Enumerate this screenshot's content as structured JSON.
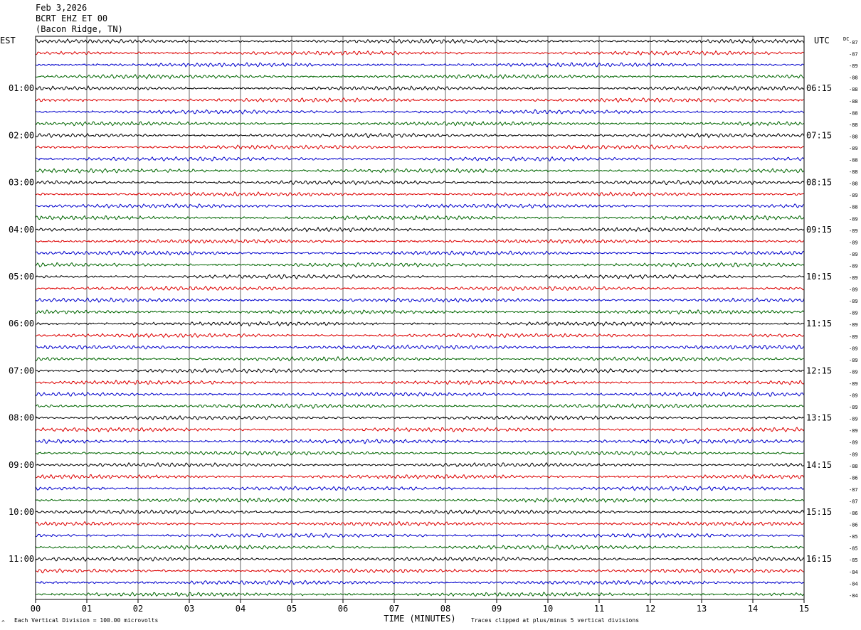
{
  "header": {
    "date": "Feb 3,2026",
    "station": "BCRT EHZ ET 00",
    "location": "(Bacon Ridge, TN)"
  },
  "labels": {
    "left_tz": "EST",
    "right_tz": "UTC",
    "dc": "DC",
    "xlabel": "TIME (MINUTES)",
    "scale_note": "Each Vertical Division =  100.00 microvolts",
    "clip_note": "Traces clipped at plus/minus 5 vertical divisions",
    "corner_mark": "^"
  },
  "chart_data": {
    "type": "line",
    "x_range": [
      0,
      15
    ],
    "x_ticks": [
      "00",
      "01",
      "02",
      "03",
      "04",
      "05",
      "06",
      "07",
      "08",
      "09",
      "10",
      "11",
      "12",
      "13",
      "14",
      "15"
    ],
    "trace_count": 48,
    "trace_colors": [
      "#000000",
      "#dd0000",
      "#0000cc",
      "#006600"
    ],
    "left_hour_labels": [
      "01:00",
      "02:00",
      "03:00",
      "04:00",
      "05:00",
      "06:00",
      "07:00",
      "08:00",
      "09:00",
      "10:00",
      "11:00"
    ],
    "right_hour_labels": [
      "06:15",
      "07:15",
      "08:15",
      "09:15",
      "10:15",
      "11:15",
      "12:15",
      "13:15",
      "14:15",
      "15:15",
      "16:15"
    ],
    "dc_offsets": [
      "-87",
      "-87",
      "-89",
      "-88",
      "-88",
      "-88",
      "-88",
      "-88",
      "-88",
      "-89",
      "-88",
      "-88",
      "-88",
      "-89",
      "-88",
      "-89",
      "-89",
      "-89",
      "-89",
      "-89",
      "-89",
      "-89",
      "-89",
      "-89",
      "-89",
      "-89",
      "-89",
      "-89",
      "-89",
      "-89",
      "-89",
      "-89",
      "-89",
      "-89",
      "-89",
      "-89",
      "-88",
      "-86",
      "-87",
      "-87",
      "-86",
      "-86",
      "-85",
      "-85",
      "-85",
      "-84",
      "-84",
      "-84"
    ],
    "grid": true
  }
}
